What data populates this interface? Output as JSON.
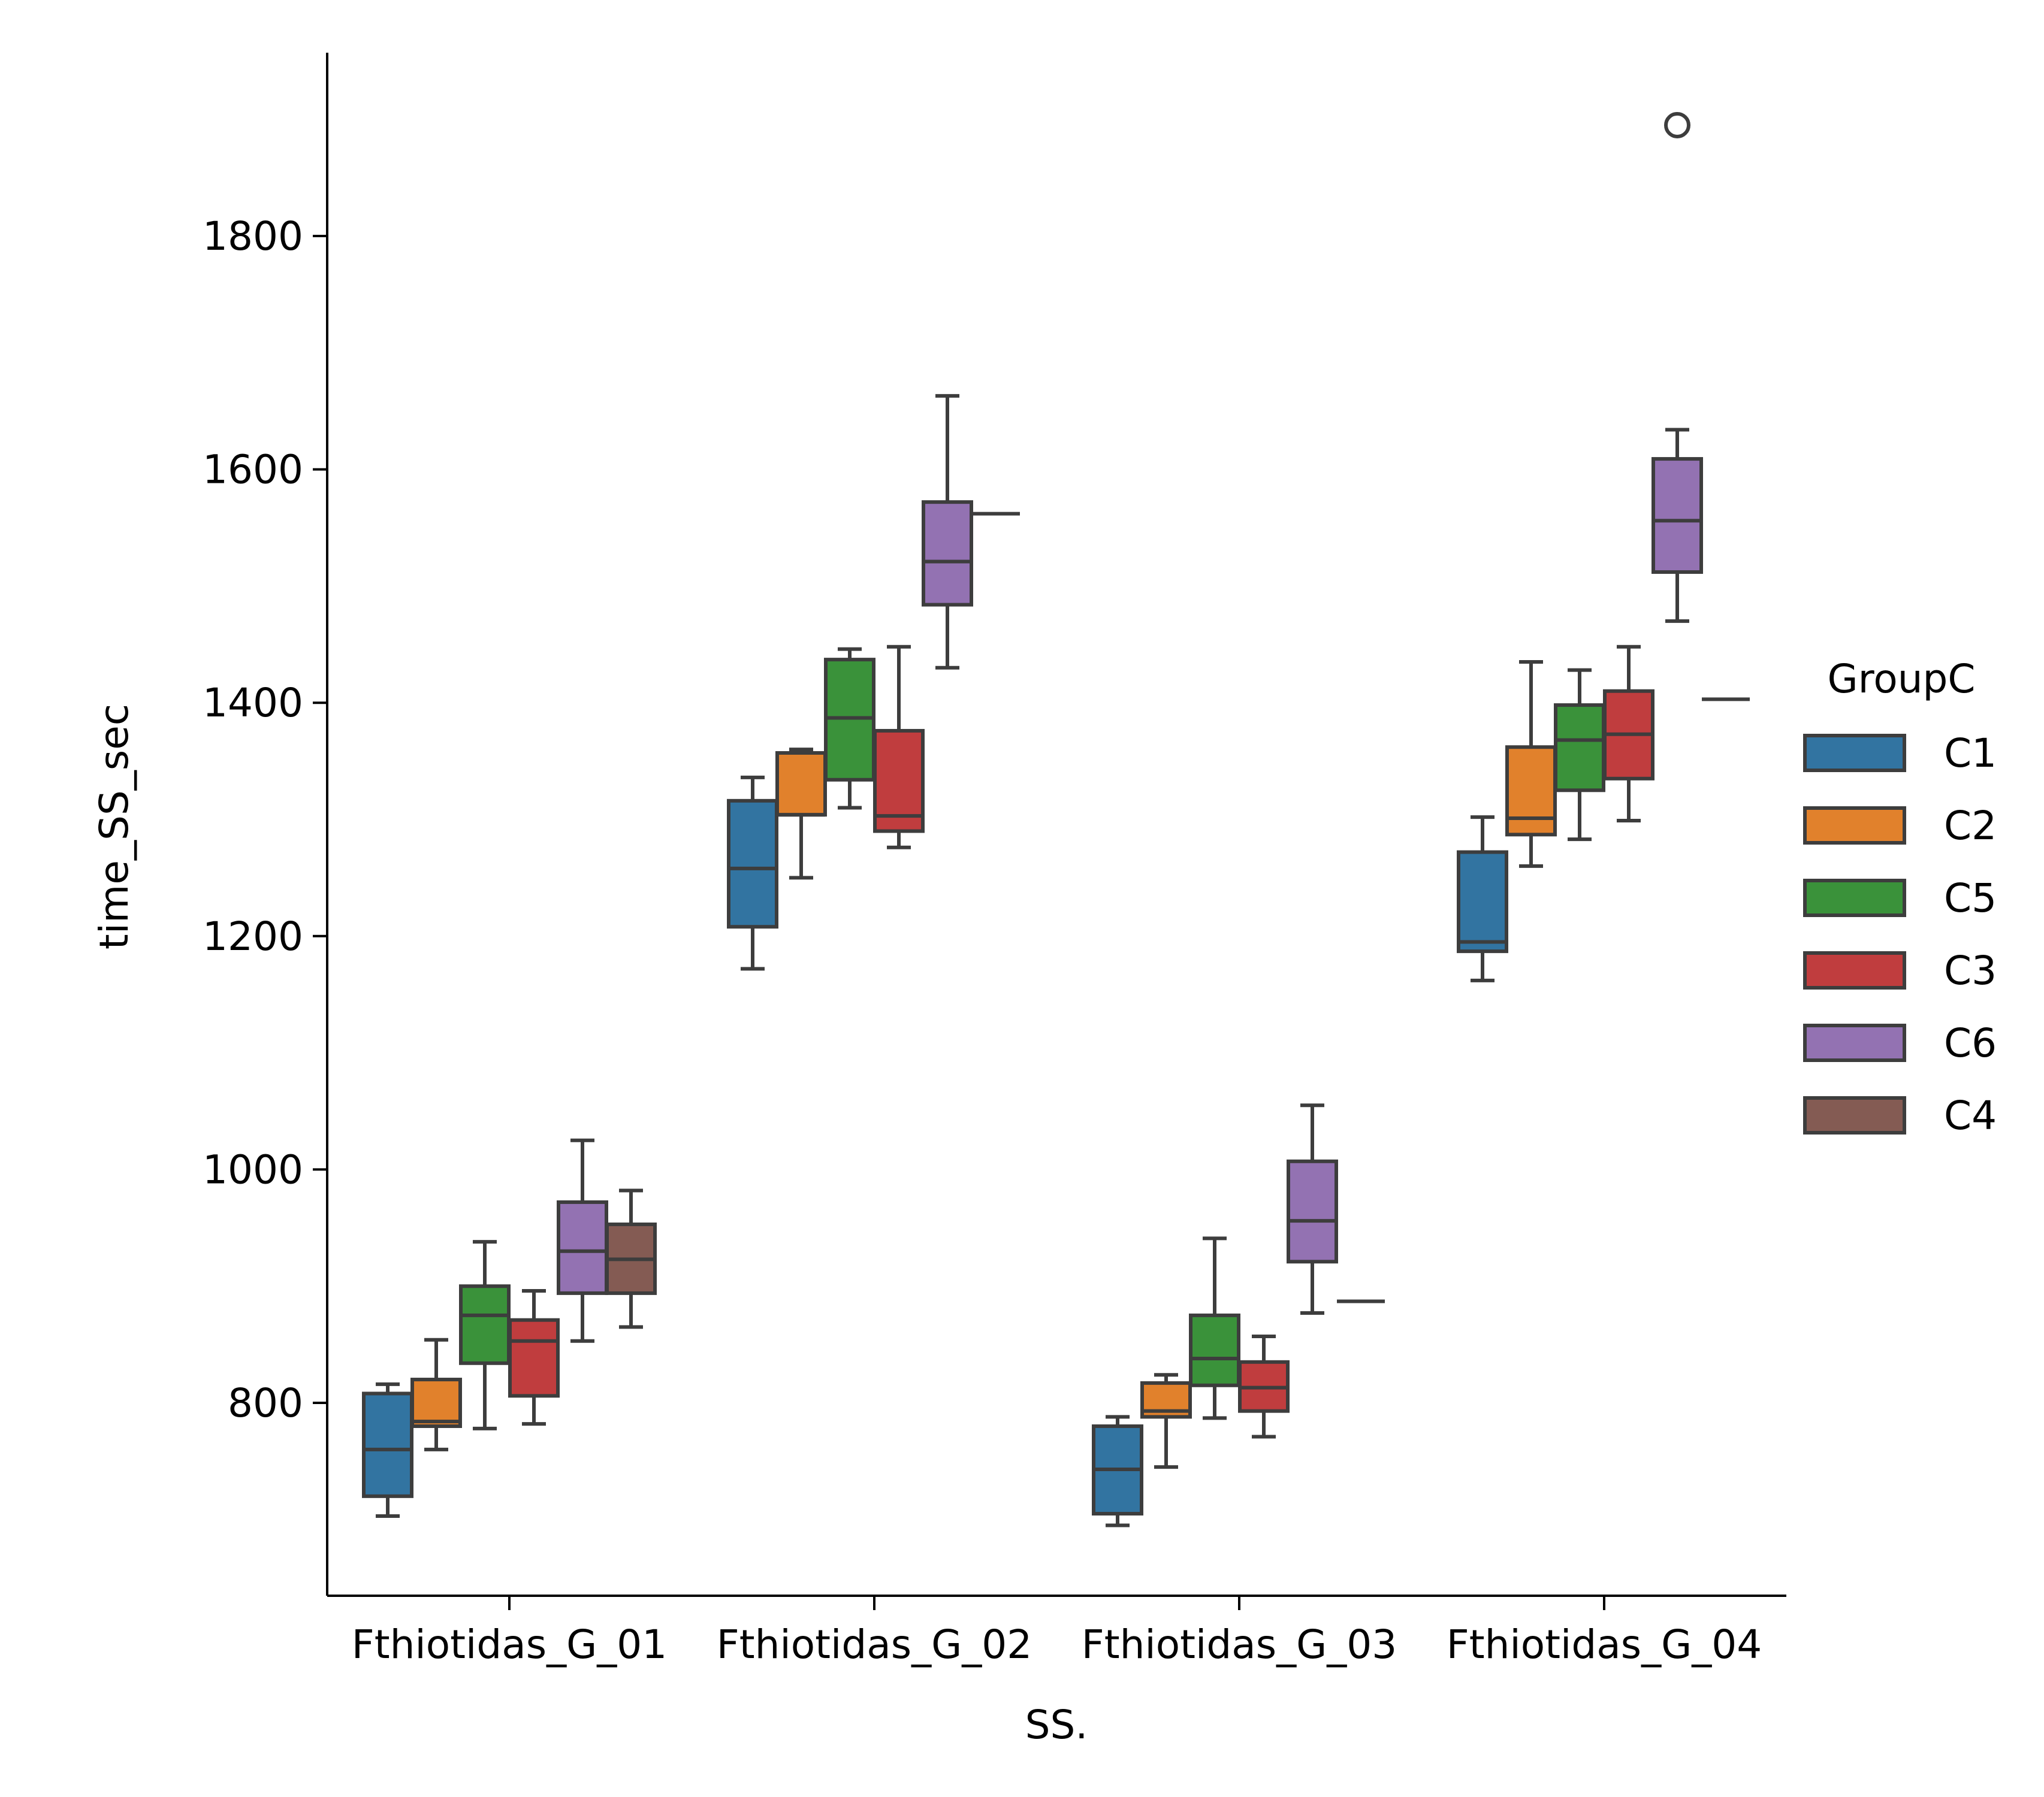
{
  "chart_data": {
    "type": "boxplot",
    "xlabel": "SS.",
    "ylabel": "time_SS_sec",
    "categories": [
      "Fthiotidas_G_01",
      "Fthiotidas_G_02",
      "Fthiotidas_G_03",
      "Fthiotidas_G_04"
    ],
    "yticks": [
      800,
      1000,
      1200,
      1400,
      1600,
      1800
    ],
    "ylim": [
      636,
      1955
    ],
    "grid": false,
    "legend": {
      "title": "GroupC",
      "placement": "right",
      "entries": [
        "C1",
        "C2",
        "C5",
        "C3",
        "C6",
        "C4"
      ]
    },
    "colors": {
      "C1": "#3274a1",
      "C2": "#e1812c",
      "C5": "#3a923a",
      "C3": "#c03d3e",
      "C6": "#9372b2",
      "C4": "#845b53"
    },
    "series": [
      {
        "name": "C1",
        "boxes": [
          {
            "whislo": 703,
            "q1": 720,
            "med": 760,
            "q3": 808,
            "whishi": 816,
            "fliers": []
          },
          {
            "whislo": 1172,
            "q1": 1208,
            "med": 1258,
            "q3": 1316,
            "whishi": 1336,
            "fliers": []
          },
          {
            "whislo": 695,
            "q1": 705,
            "med": 743,
            "q3": 780,
            "whishi": 788,
            "fliers": []
          },
          {
            "whislo": 1162,
            "q1": 1187,
            "med": 1195,
            "q3": 1272,
            "whishi": 1302,
            "fliers": []
          }
        ]
      },
      {
        "name": "C2",
        "boxes": [
          {
            "whislo": 760,
            "q1": 780,
            "med": 784,
            "q3": 820,
            "whishi": 854,
            "fliers": []
          },
          {
            "whislo": 1250,
            "q1": 1304,
            "med": 1304,
            "q3": 1357,
            "whishi": 1360,
            "fliers": []
          },
          {
            "whislo": 745,
            "q1": 788,
            "med": 793,
            "q3": 817,
            "whishi": 824,
            "fliers": []
          },
          {
            "whislo": 1260,
            "q1": 1287,
            "med": 1301,
            "q3": 1362,
            "whishi": 1435,
            "fliers": []
          }
        ]
      },
      {
        "name": "C5",
        "boxes": [
          {
            "whislo": 778,
            "q1": 834,
            "med": 875,
            "q3": 900,
            "whishi": 938,
            "fliers": []
          },
          {
            "whislo": 1310,
            "q1": 1334,
            "med": 1387,
            "q3": 1437,
            "whishi": 1446,
            "fliers": []
          },
          {
            "whislo": 787,
            "q1": 815,
            "med": 838,
            "q3": 875,
            "whishi": 941,
            "fliers": []
          },
          {
            "whislo": 1283,
            "q1": 1325,
            "med": 1368,
            "q3": 1398,
            "whishi": 1428,
            "fliers": []
          }
        ]
      },
      {
        "name": "C3",
        "boxes": [
          {
            "whislo": 782,
            "q1": 806,
            "med": 853,
            "q3": 871,
            "whishi": 896,
            "fliers": []
          },
          {
            "whislo": 1276,
            "q1": 1290,
            "med": 1303,
            "q3": 1376,
            "whishi": 1448,
            "fliers": []
          },
          {
            "whislo": 771,
            "q1": 793,
            "med": 813,
            "q3": 835,
            "whishi": 857,
            "fliers": []
          },
          {
            "whislo": 1299,
            "q1": 1335,
            "med": 1373,
            "q3": 1410,
            "whishi": 1448,
            "fliers": []
          }
        ]
      },
      {
        "name": "C6",
        "boxes": [
          {
            "whislo": 853,
            "q1": 894,
            "med": 930,
            "q3": 972,
            "whishi": 1025,
            "fliers": []
          },
          {
            "whislo": 1430,
            "q1": 1484,
            "med": 1521,
            "q3": 1572,
            "whishi": 1663,
            "fliers": []
          },
          {
            "whislo": 877,
            "q1": 921,
            "med": 956,
            "q3": 1007,
            "whishi": 1055,
            "fliers": []
          },
          {
            "whislo": 1470,
            "q1": 1512,
            "med": 1556,
            "q3": 1609,
            "whishi": 1634,
            "fliers": [
              1895
            ]
          }
        ]
      },
      {
        "name": "C4",
        "boxes": [
          {
            "whislo": 865,
            "q1": 894,
            "med": 923,
            "q3": 953,
            "whishi": 982,
            "fliers": []
          },
          {
            "whislo": 1562,
            "q1": 1562,
            "med": 1562,
            "q3": 1562,
            "whishi": 1562,
            "fliers": []
          },
          {
            "whislo": 887,
            "q1": 887,
            "med": 887,
            "q3": 887,
            "whishi": 887,
            "fliers": []
          },
          {
            "whislo": 1403,
            "q1": 1403,
            "med": 1403,
            "q3": 1403,
            "whishi": 1403,
            "fliers": []
          }
        ]
      }
    ]
  }
}
